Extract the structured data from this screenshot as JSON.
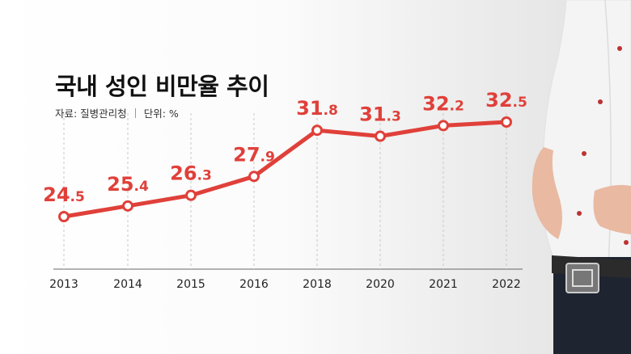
{
  "title": "국내 성인 비만율 추이",
  "source": "자료: 질병관리청",
  "unit": "단위: %",
  "chart_data": {
    "type": "line",
    "title": "국내 성인 비만율 추이",
    "xlabel": "",
    "ylabel": "",
    "categories": [
      "2013",
      "2014",
      "2015",
      "2016",
      "2018",
      "2020",
      "2021",
      "2022"
    ],
    "values": [
      24.5,
      25.4,
      26.3,
      27.9,
      31.8,
      31.3,
      32.2,
      32.5
    ],
    "labels": [
      {
        "int": "24",
        "dec": ".5"
      },
      {
        "int": "25",
        "dec": ".4"
      },
      {
        "int": "26",
        "dec": ".3"
      },
      {
        "int": "27",
        "dec": ".9"
      },
      {
        "int": "31",
        "dec": ".8"
      },
      {
        "int": "31",
        "dec": ".3"
      },
      {
        "int": "32",
        "dec": ".2"
      },
      {
        "int": "32",
        "dec": ".5"
      }
    ],
    "ylim": [
      22,
      34
    ],
    "grid": "vertical-dashed",
    "line_color": "#e0403a",
    "marker_fill": "#ffffff"
  }
}
